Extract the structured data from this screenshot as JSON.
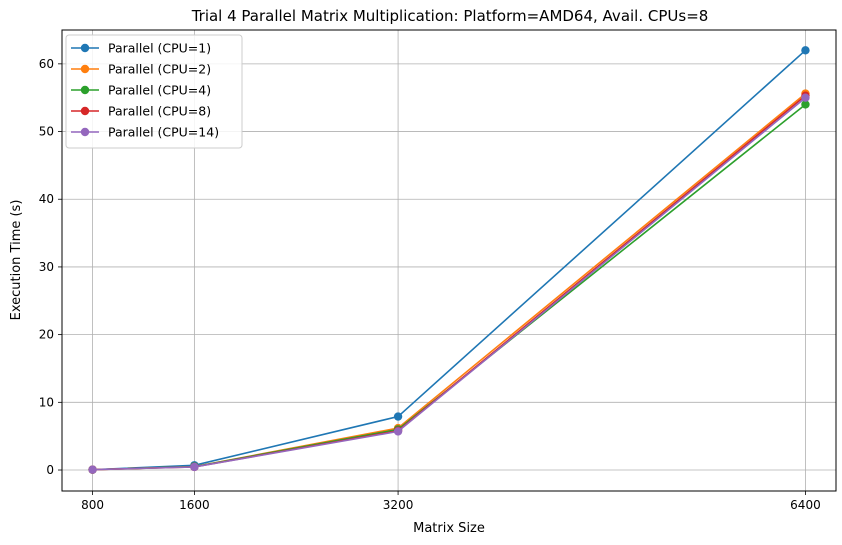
{
  "chart_data": {
    "type": "line",
    "title": "Trial 4 Parallel Matrix Multiplication: Platform=AMD64, Avail. CPUs=8",
    "xlabel": "Matrix Size",
    "ylabel": "Execution Time (s)",
    "x": [
      800,
      1600,
      3200,
      6400
    ],
    "x_tick_labels": [
      "800",
      "1600",
      "3200",
      "6400"
    ],
    "y_ticks": [
      0,
      10,
      20,
      30,
      40,
      50,
      60
    ],
    "y_tick_labels": [
      "0",
      "10",
      "20",
      "30",
      "40",
      "50",
      "60"
    ],
    "xlim": [
      560,
      6640
    ],
    "ylim": [
      -3.1,
      65.0
    ],
    "grid": true,
    "legend_position": "top-left",
    "series": [
      {
        "name": "Parallel (CPU=1)",
        "color": "#1f77b4",
        "values": [
          0.05,
          0.7,
          7.9,
          62.0
        ]
      },
      {
        "name": "Parallel (CPU=2)",
        "color": "#ff7f0e",
        "values": [
          0.05,
          0.5,
          6.2,
          55.6
        ]
      },
      {
        "name": "Parallel (CPU=4)",
        "color": "#2ca02c",
        "values": [
          0.05,
          0.5,
          6.0,
          54.0
        ]
      },
      {
        "name": "Parallel (CPU=8)",
        "color": "#d62728",
        "values": [
          0.05,
          0.45,
          5.8,
          55.3
        ]
      },
      {
        "name": "Parallel (CPU=14)",
        "color": "#9467bd",
        "values": [
          0.05,
          0.45,
          5.7,
          55.0
        ]
      }
    ]
  }
}
